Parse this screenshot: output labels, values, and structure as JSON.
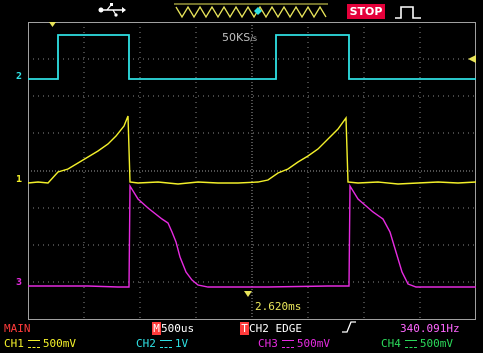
{
  "status": {
    "state": "STOP",
    "usb_icon": "usb-icon",
    "wave_icon": "trigger-waveform-icon",
    "pulse_icon": "pulse-icon"
  },
  "display": {
    "sample_rate_value": "50KS",
    "sample_rate_unit": "/s",
    "cursor_readout": "2.620ms"
  },
  "channel_markers": {
    "ch1": "1",
    "ch2": "2",
    "ch3": "3"
  },
  "footer": {
    "mode": "MAIN",
    "timebase_prefix": "M",
    "timebase": "500us",
    "trigger_prefix": "T",
    "trigger": "CH2 EDGE",
    "frequency": "340.091Hz",
    "ch1_label": "CH1",
    "ch1_scale": "500mV",
    "ch2_label": "CH2",
    "ch2_scale": "1V",
    "ch3_label": "CH3",
    "ch3_scale": "500mV",
    "ch4_label": "CH4",
    "ch4_scale": "500mV"
  },
  "colors": {
    "ch1": "#f3f02a",
    "ch2": "#2fe1e4",
    "ch3": "#e62be0",
    "ch4": "#2bd95a",
    "stop": "#e4003a"
  }
}
